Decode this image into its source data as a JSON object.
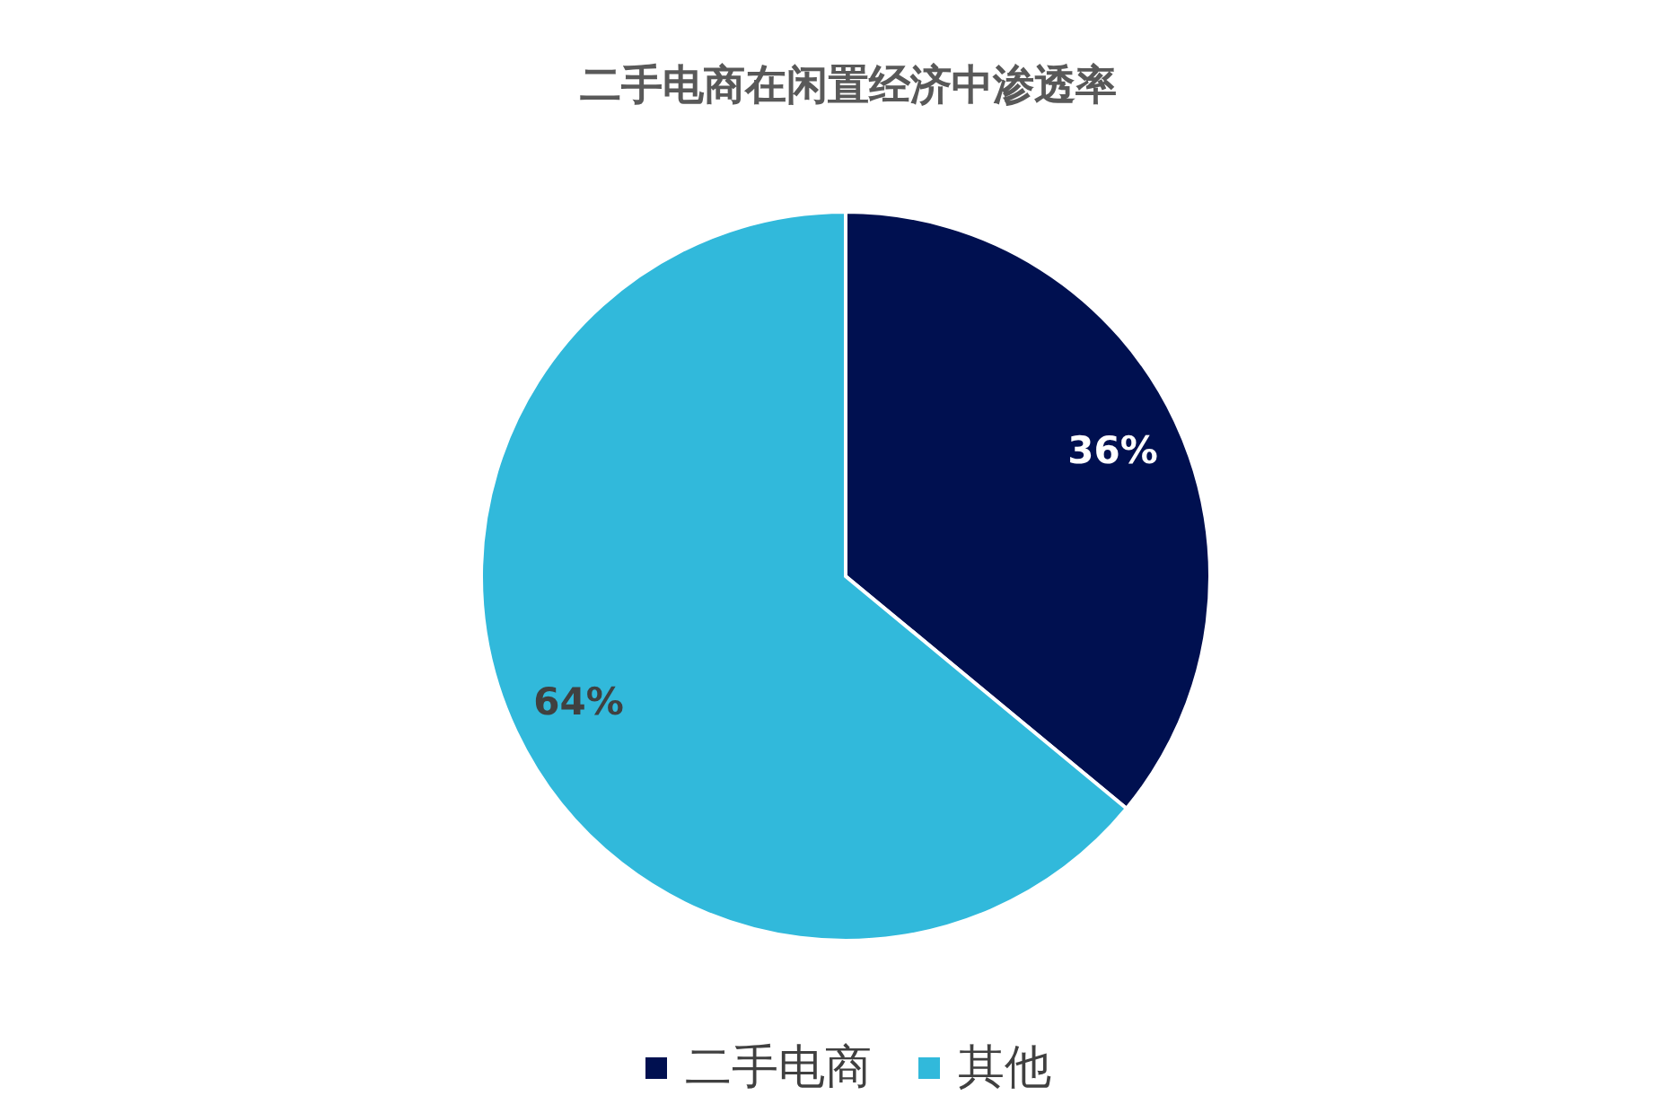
{
  "chart_data": {
    "type": "pie",
    "title": "二手电商在闲置经济中渗透率",
    "categories": [
      "二手电商",
      "其他"
    ],
    "values": [
      36,
      64
    ],
    "colors": [
      "#001050",
      "#31b9db"
    ],
    "value_labels": [
      "36%",
      "64%"
    ],
    "legend": "bottom"
  }
}
